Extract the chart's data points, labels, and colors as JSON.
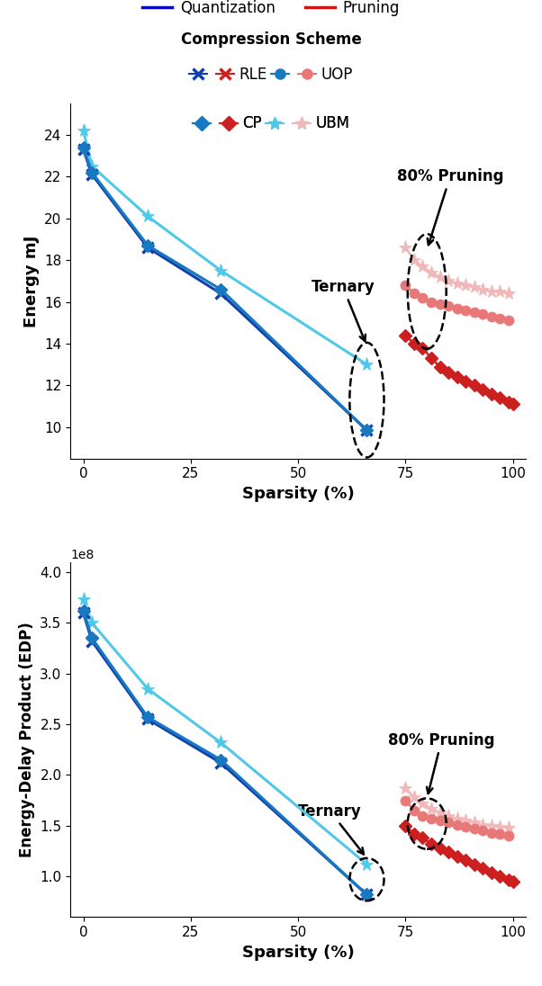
{
  "quant_rle_x": [
    0,
    2,
    15,
    32,
    66
  ],
  "quant_rle_y_energy": [
    23.3,
    22.1,
    18.6,
    16.4,
    9.85
  ],
  "quant_rle_y_edp": [
    360000000.0,
    332000000.0,
    255000000.0,
    212000000.0,
    82000000.0
  ],
  "quant_cp_x": [
    0,
    2,
    15,
    32,
    66
  ],
  "quant_cp_y_energy": [
    23.4,
    22.2,
    18.7,
    16.6,
    9.85
  ],
  "quant_cp_y_edp": [
    362000000.0,
    335000000.0,
    257000000.0,
    215000000.0,
    82000000.0
  ],
  "quant_ubm_x": [
    0,
    2,
    15,
    32,
    66
  ],
  "quant_ubm_y_energy": [
    24.2,
    22.5,
    20.1,
    17.5,
    13.0
  ],
  "quant_ubm_y_edp": [
    373000000.0,
    350000000.0,
    285000000.0,
    232000000.0,
    112000000.0
  ],
  "pruning_rle_x": [
    75,
    77,
    79,
    81,
    83,
    85,
    87,
    89,
    91,
    93,
    95,
    97,
    99,
    100
  ],
  "pruning_rle_y_energy": [
    14.4,
    14.0,
    13.8,
    13.3,
    12.9,
    12.6,
    12.4,
    12.2,
    12.0,
    11.8,
    11.6,
    11.4,
    11.2,
    11.1
  ],
  "pruning_rle_y_edp": [
    150000000.0,
    142000000.0,
    138000000.0,
    132000000.0,
    128000000.0,
    124000000.0,
    120000000.0,
    116000000.0,
    112000000.0,
    108000000.0,
    104000000.0,
    100000000.0,
    97000000.0,
    95000000.0
  ],
  "pruning_uop_x": [
    75,
    77,
    79,
    81,
    83,
    85,
    87,
    89,
    91,
    93,
    95,
    97,
    99
  ],
  "pruning_uop_y_energy": [
    16.8,
    16.4,
    16.2,
    16.0,
    15.9,
    15.8,
    15.7,
    15.6,
    15.5,
    15.4,
    15.3,
    15.2,
    15.1
  ],
  "pruning_uop_y_edp": [
    175000000.0,
    165000000.0,
    160000000.0,
    157000000.0,
    155000000.0,
    153000000.0,
    151000000.0,
    149000000.0,
    147000000.0,
    145000000.0,
    143000000.0,
    142000000.0,
    140000000.0
  ],
  "pruning_ubm_x": [
    75,
    77,
    79,
    81,
    83,
    85,
    87,
    89,
    91,
    93,
    95,
    97,
    99
  ],
  "pruning_ubm_y_energy": [
    18.6,
    18.0,
    17.7,
    17.4,
    17.2,
    17.0,
    16.9,
    16.8,
    16.7,
    16.6,
    16.5,
    16.5,
    16.4
  ],
  "pruning_ubm_y_edp": [
    187000000.0,
    178000000.0,
    172000000.0,
    167000000.0,
    163000000.0,
    160000000.0,
    157000000.0,
    155000000.0,
    153000000.0,
    151000000.0,
    150000000.0,
    149000000.0,
    148000000.0
  ],
  "c_rle_quant": "#1040b0",
  "c_cp_quant": "#1878c0",
  "c_ubm_quant": "#50c8e8",
  "c_rle_pruning": "#cc2020",
  "c_uop_pruning": "#e87878",
  "c_ubm_pruning": "#f0b8b8",
  "energy_ylim": [
    8.5,
    25.5
  ],
  "edp_ylim": [
    60000000.0,
    410000000.0
  ],
  "xlim": [
    -3,
    103
  ]
}
